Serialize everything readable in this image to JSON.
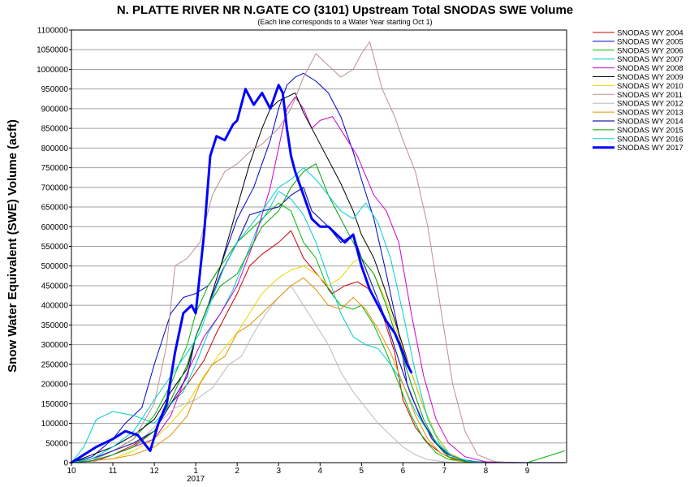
{
  "chart_data": {
    "type": "line",
    "title": "N. PLATTE RIVER NR N.GATE CO (3101) Upstream Total SNODAS SWE Volume",
    "subtitle": "(Each line corresponds to a Water Year starting Oct 1)",
    "xlabel": "",
    "ylabel": "Snow Water Equivalent (SWE) Volume (acft)",
    "x_axis_unit": "month (10 = Oct 1, 13 = Jan 1, 21.8 = right edge)",
    "xlim": [
      10,
      21.95
    ],
    "ylim": [
      0,
      1100000
    ],
    "x_ticks": [
      {
        "x": 10,
        "label": "10"
      },
      {
        "x": 11,
        "label": "11"
      },
      {
        "x": 12,
        "label": "12"
      },
      {
        "x": 13,
        "label": "1"
      },
      {
        "x": 14,
        "label": "2"
      },
      {
        "x": 15,
        "label": "3"
      },
      {
        "x": 16,
        "label": "4"
      },
      {
        "x": 17,
        "label": "5"
      },
      {
        "x": 18,
        "label": "6"
      },
      {
        "x": 19,
        "label": "7"
      },
      {
        "x": 20,
        "label": "8"
      },
      {
        "x": 21,
        "label": "9"
      }
    ],
    "x_year_label": {
      "x": 13,
      "label": "2017"
    },
    "y_ticks": [
      0,
      50000,
      100000,
      150000,
      200000,
      250000,
      300000,
      350000,
      400000,
      450000,
      500000,
      550000,
      600000,
      650000,
      700000,
      750000,
      800000,
      850000,
      900000,
      950000,
      1000000,
      1050000,
      1100000
    ],
    "grid": "horizontal",
    "legend_position": "right",
    "series": [
      {
        "name": "SNODAS WY 2004",
        "color": "#cc0000",
        "width": 1,
        "x": [
          10.0,
          10.6,
          11.0,
          11.5,
          12.0,
          12.4,
          12.8,
          13.2,
          13.5,
          13.8,
          14.0,
          14.3,
          14.6,
          15.0,
          15.3,
          15.6,
          16.0,
          16.3,
          16.6,
          16.9,
          17.2,
          17.5,
          17.8,
          18.0,
          18.3,
          18.6,
          18.9,
          19.2,
          19.6,
          20.0,
          20.5,
          21.0,
          21.9
        ],
        "y": [
          0,
          5000,
          20000,
          45000,
          80000,
          150000,
          200000,
          260000,
          330000,
          390000,
          430000,
          500000,
          530000,
          560000,
          590000,
          520000,
          470000,
          430000,
          450000,
          460000,
          440000,
          380000,
          280000,
          160000,
          90000,
          50000,
          25000,
          10000,
          3000,
          0,
          0,
          0,
          0
        ]
      },
      {
        "name": "SNODAS WY 2005",
        "color": "#0000cc",
        "width": 1,
        "x": [
          10.0,
          10.5,
          11.0,
          11.3,
          11.7,
          12.0,
          12.4,
          12.7,
          13.0,
          13.3,
          13.6,
          14.0,
          14.4,
          14.8,
          15.0,
          15.2,
          15.4,
          15.6,
          15.9,
          16.2,
          16.5,
          16.8,
          17.0,
          17.3,
          17.6,
          17.9,
          18.1,
          18.4,
          18.7,
          19.0,
          19.4,
          19.8,
          20.3,
          21.0,
          21.9
        ],
        "y": [
          0,
          15000,
          60000,
          100000,
          140000,
          250000,
          380000,
          420000,
          430000,
          450000,
          500000,
          620000,
          700000,
          820000,
          900000,
          960000,
          980000,
          990000,
          970000,
          940000,
          880000,
          790000,
          720000,
          620000,
          480000,
          330000,
          200000,
          120000,
          60000,
          25000,
          8000,
          2000,
          0,
          0,
          0
        ]
      },
      {
        "name": "SNODAS WY 2006",
        "color": "#00bb00",
        "width": 1,
        "x": [
          10.0,
          10.5,
          11.0,
          11.5,
          12.0,
          12.4,
          12.8,
          13.0,
          13.3,
          13.6,
          14.0,
          14.3,
          14.6,
          15.0,
          15.3,
          15.6,
          15.9,
          16.2,
          16.5,
          16.8,
          17.0,
          17.3,
          17.6,
          17.9,
          18.2,
          18.5,
          18.8,
          19.1,
          19.5,
          20.0,
          21.0,
          21.9
        ],
        "y": [
          0,
          10000,
          30000,
          60000,
          120000,
          200000,
          300000,
          380000,
          450000,
          500000,
          560000,
          590000,
          620000,
          660000,
          640000,
          560000,
          520000,
          440000,
          400000,
          390000,
          400000,
          350000,
          280000,
          200000,
          120000,
          60000,
          25000,
          8000,
          2000,
          0,
          0,
          30000
        ]
      },
      {
        "name": "SNODAS WY 2007",
        "color": "#00cccc",
        "width": 1,
        "x": [
          10.0,
          10.3,
          10.6,
          11.0,
          11.5,
          12.0,
          12.4,
          12.7,
          13.0,
          13.3,
          13.6,
          13.9,
          14.2,
          14.5,
          14.8,
          15.0,
          15.3,
          15.6,
          15.9,
          16.2,
          16.5,
          16.8,
          17.1,
          17.4,
          17.7,
          18.0,
          18.3,
          18.6,
          18.9,
          19.2,
          19.6,
          20.0,
          21.0,
          21.9
        ],
        "y": [
          0,
          40000,
          110000,
          130000,
          120000,
          100000,
          150000,
          180000,
          250000,
          330000,
          380000,
          440000,
          520000,
          600000,
          650000,
          690000,
          670000,
          630000,
          560000,
          470000,
          380000,
          320000,
          300000,
          290000,
          250000,
          200000,
          130000,
          80000,
          40000,
          15000,
          5000,
          0,
          0,
          0
        ]
      },
      {
        "name": "SNODAS WY 2008",
        "color": "#cc00cc",
        "width": 1,
        "x": [
          10.0,
          10.6,
          11.0,
          11.5,
          12.0,
          12.4,
          12.8,
          13.2,
          13.6,
          14.0,
          14.4,
          14.8,
          15.0,
          15.2,
          15.4,
          15.6,
          15.8,
          16.0,
          16.3,
          16.6,
          16.9,
          17.1,
          17.3,
          17.6,
          17.9,
          18.2,
          18.5,
          18.8,
          19.1,
          19.5,
          20.0,
          21.0,
          21.9
        ],
        "y": [
          0,
          5000,
          20000,
          40000,
          60000,
          120000,
          230000,
          320000,
          380000,
          450000,
          560000,
          700000,
          800000,
          900000,
          930000,
          900000,
          850000,
          870000,
          880000,
          830000,
          780000,
          730000,
          680000,
          640000,
          560000,
          380000,
          220000,
          110000,
          50000,
          15000,
          2000,
          0,
          0
        ]
      },
      {
        "name": "SNODAS WY 2009",
        "color": "#000000",
        "width": 1,
        "x": [
          10.0,
          10.5,
          11.0,
          11.5,
          12.0,
          12.4,
          12.8,
          13.0,
          13.3,
          13.6,
          14.0,
          14.3,
          14.6,
          14.8,
          15.0,
          15.2,
          15.4,
          15.6,
          15.9,
          16.2,
          16.5,
          16.8,
          17.0,
          17.3,
          17.6,
          17.9,
          18.2,
          18.5,
          18.8,
          19.1,
          19.5,
          20.0,
          21.0,
          21.9
        ],
        "y": [
          0,
          20000,
          40000,
          70000,
          110000,
          180000,
          240000,
          320000,
          400000,
          500000,
          650000,
          760000,
          850000,
          900000,
          920000,
          930000,
          940000,
          890000,
          830000,
          770000,
          710000,
          640000,
          580000,
          520000,
          430000,
          330000,
          230000,
          140000,
          70000,
          25000,
          5000,
          0,
          0,
          0
        ]
      },
      {
        "name": "SNODAS WY 2010",
        "color": "#e6d800",
        "width": 1,
        "x": [
          10.0,
          10.5,
          11.0,
          11.5,
          12.0,
          12.4,
          12.8,
          13.2,
          13.6,
          14.0,
          14.3,
          14.6,
          15.0,
          15.3,
          15.6,
          15.9,
          16.2,
          16.5,
          16.8,
          17.0,
          17.3,
          17.6,
          17.9,
          18.2,
          18.5,
          18.8,
          19.1,
          19.5,
          20.0,
          21.0,
          21.9
        ],
        "y": [
          0,
          5000,
          10000,
          30000,
          60000,
          100000,
          150000,
          220000,
          280000,
          330000,
          380000,
          430000,
          470000,
          490000,
          500000,
          480000,
          450000,
          470000,
          510000,
          520000,
          480000,
          410000,
          320000,
          230000,
          140000,
          70000,
          25000,
          5000,
          0,
          0,
          0
        ]
      },
      {
        "name": "SNODAS WY 2011",
        "color": "#bc8f8f",
        "width": 1,
        "x": [
          10.0,
          10.5,
          11.0,
          11.5,
          12.0,
          12.3,
          12.5,
          12.8,
          13.1,
          13.4,
          13.7,
          14.0,
          14.3,
          14.6,
          15.0,
          15.3,
          15.6,
          15.9,
          16.2,
          16.5,
          16.8,
          17.0,
          17.2,
          17.5,
          17.8,
          18.0,
          18.3,
          18.6,
          18.9,
          19.2,
          19.5,
          19.8,
          20.2,
          20.6,
          21.0,
          21.9
        ],
        "y": [
          0,
          5000,
          30000,
          60000,
          150000,
          300000,
          500000,
          520000,
          560000,
          680000,
          740000,
          760000,
          790000,
          810000,
          850000,
          900000,
          980000,
          1040000,
          1010000,
          980000,
          1000000,
          1040000,
          1070000,
          950000,
          880000,
          820000,
          740000,
          600000,
          400000,
          200000,
          80000,
          20000,
          3000,
          0,
          0,
          0
        ]
      },
      {
        "name": "SNODAS WY 2012",
        "color": "#bbbbbb",
        "width": 1,
        "x": [
          10.0,
          10.5,
          11.0,
          11.5,
          12.0,
          12.5,
          13.0,
          13.4,
          13.8,
          14.1,
          14.4,
          14.7,
          15.0,
          15.3,
          15.6,
          15.9,
          16.2,
          16.5,
          16.8,
          17.1,
          17.4,
          17.7,
          18.0,
          18.3,
          18.6,
          19.0,
          19.4,
          20.0,
          21.0,
          21.9
        ],
        "y": [
          0,
          5000,
          20000,
          40000,
          90000,
          140000,
          160000,
          190000,
          250000,
          270000,
          330000,
          380000,
          420000,
          450000,
          400000,
          350000,
          300000,
          230000,
          180000,
          140000,
          100000,
          70000,
          40000,
          20000,
          8000,
          2000,
          0,
          0,
          0,
          0
        ]
      },
      {
        "name": "SNODAS WY 2013",
        "color": "#e69000",
        "width": 1,
        "x": [
          10.0,
          10.5,
          11.0,
          11.5,
          12.0,
          12.4,
          12.8,
          13.1,
          13.4,
          13.7,
          14.0,
          14.3,
          14.6,
          15.0,
          15.3,
          15.6,
          15.9,
          16.2,
          16.5,
          16.8,
          17.1,
          17.4,
          17.7,
          18.0,
          18.3,
          18.6,
          18.9,
          19.2,
          19.5,
          20.0,
          21.0,
          21.9
        ],
        "y": [
          0,
          5000,
          10000,
          20000,
          40000,
          70000,
          120000,
          200000,
          250000,
          270000,
          330000,
          350000,
          380000,
          420000,
          450000,
          470000,
          440000,
          400000,
          390000,
          420000,
          390000,
          340000,
          280000,
          200000,
          120000,
          60000,
          25000,
          8000,
          2000,
          0,
          0,
          0
        ]
      },
      {
        "name": "SNODAS WY 2014",
        "color": "#2020b0",
        "width": 1.2,
        "x": [
          10.0,
          10.5,
          11.0,
          11.5,
          12.0,
          12.4,
          12.8,
          13.0,
          13.3,
          13.6,
          14.0,
          14.3,
          14.6,
          15.0,
          15.3,
          15.6,
          15.8,
          16.0,
          16.2,
          16.5,
          16.8,
          17.0,
          17.3,
          17.6,
          17.9,
          18.2,
          18.5,
          18.8,
          19.1,
          19.5,
          20.0,
          21.0,
          21.9
        ],
        "y": [
          0,
          10000,
          30000,
          50000,
          80000,
          150000,
          220000,
          320000,
          400000,
          480000,
          560000,
          630000,
          640000,
          650000,
          680000,
          700000,
          640000,
          620000,
          600000,
          560000,
          580000,
          520000,
          440000,
          360000,
          260000,
          170000,
          100000,
          50000,
          20000,
          5000,
          0,
          0,
          0
        ]
      },
      {
        "name": "SNODAS WY 2015",
        "color": "#00a000",
        "width": 1,
        "x": [
          10.0,
          10.5,
          11.0,
          11.5,
          12.0,
          12.4,
          12.8,
          13.0,
          13.3,
          13.6,
          14.0,
          14.3,
          14.6,
          15.0,
          15.3,
          15.6,
          15.9,
          16.2,
          16.5,
          16.8,
          17.0,
          17.3,
          17.6,
          17.9,
          18.2,
          18.5,
          18.8,
          19.1,
          19.5,
          20.0,
          21.0,
          21.9
        ],
        "y": [
          0,
          5000,
          20000,
          40000,
          80000,
          160000,
          250000,
          320000,
          400000,
          450000,
          480000,
          540000,
          600000,
          640000,
          700000,
          740000,
          760000,
          680000,
          620000,
          560000,
          520000,
          480000,
          400000,
          300000,
          200000,
          110000,
          50000,
          15000,
          3000,
          0,
          0,
          0
        ]
      },
      {
        "name": "SNODAS WY 2016",
        "color": "#00d0d0",
        "width": 1,
        "x": [
          10.0,
          10.5,
          11.0,
          11.5,
          12.0,
          12.4,
          12.8,
          13.1,
          13.4,
          13.7,
          14.0,
          14.3,
          14.6,
          15.0,
          15.3,
          15.6,
          15.9,
          16.2,
          16.5,
          16.8,
          17.1,
          17.4,
          17.7,
          18.0,
          18.3,
          18.6,
          18.9,
          19.2,
          19.6,
          20.0,
          21.0,
          21.9
        ],
        "y": [
          0,
          10000,
          40000,
          80000,
          160000,
          220000,
          280000,
          330000,
          420000,
          500000,
          560000,
          600000,
          640000,
          700000,
          720000,
          750000,
          720000,
          680000,
          640000,
          620000,
          660000,
          610000,
          520000,
          380000,
          230000,
          110000,
          45000,
          15000,
          3000,
          0,
          0,
          0
        ]
      },
      {
        "name": "SNODAS WY 2017",
        "color": "#0000ff",
        "width": 3,
        "x": [
          10.0,
          10.3,
          10.6,
          11.0,
          11.3,
          11.6,
          11.9,
          12.1,
          12.3,
          12.5,
          12.7,
          12.9,
          13.0,
          13.2,
          13.35,
          13.5,
          13.7,
          13.9,
          14.0,
          14.2,
          14.4,
          14.6,
          14.8,
          15.0,
          15.1,
          15.2,
          15.3,
          15.4,
          15.6,
          15.8,
          16.0,
          16.2,
          16.4,
          16.6,
          16.8,
          17.0,
          17.2,
          17.4,
          17.6,
          17.8,
          18.0,
          18.1,
          18.2
        ],
        "y": [
          0,
          20000,
          40000,
          60000,
          80000,
          70000,
          30000,
          100000,
          150000,
          280000,
          380000,
          400000,
          380000,
          580000,
          780000,
          830000,
          820000,
          860000,
          870000,
          950000,
          910000,
          940000,
          900000,
          960000,
          940000,
          850000,
          780000,
          740000,
          680000,
          620000,
          600000,
          600000,
          580000,
          560000,
          580000,
          500000,
          440000,
          400000,
          360000,
          330000,
          280000,
          250000,
          230000
        ]
      }
    ]
  }
}
